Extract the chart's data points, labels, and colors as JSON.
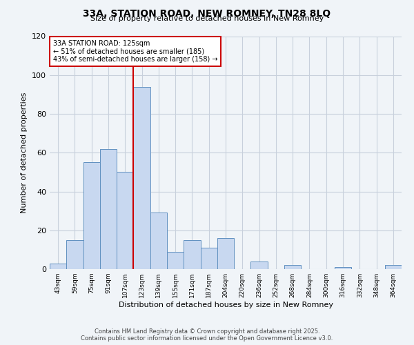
{
  "title": "33A, STATION ROAD, NEW ROMNEY, TN28 8LQ",
  "subtitle": "Size of property relative to detached houses in New Romney",
  "xlabel": "Distribution of detached houses by size in New Romney",
  "ylabel": "Number of detached properties",
  "categories": [
    "43sqm",
    "59sqm",
    "75sqm",
    "91sqm",
    "107sqm",
    "123sqm",
    "139sqm",
    "155sqm",
    "171sqm",
    "187sqm",
    "204sqm",
    "220sqm",
    "236sqm",
    "252sqm",
    "268sqm",
    "284sqm",
    "300sqm",
    "316sqm",
    "332sqm",
    "348sqm",
    "364sqm"
  ],
  "values": [
    3,
    15,
    55,
    62,
    50,
    94,
    29,
    9,
    15,
    11,
    16,
    0,
    4,
    0,
    2,
    0,
    0,
    1,
    0,
    0,
    2
  ],
  "bar_color": "#c8d8f0",
  "bar_edge_color": "#6090c0",
  "vline_x_index": 5,
  "vline_color": "#cc0000",
  "ylim": [
    0,
    120
  ],
  "yticks": [
    0,
    20,
    40,
    60,
    80,
    100,
    120
  ],
  "annotation_line1": "33A STATION ROAD: 125sqm",
  "annotation_line2": "← 51% of detached houses are smaller (185)",
  "annotation_line3": "43% of semi-detached houses are larger (158) →",
  "annotation_box_color": "#ffffff",
  "annotation_box_edge": "#cc0000",
  "grid_color": "#c8d0dc",
  "background_color": "#f0f4f8",
  "footer_line1": "Contains HM Land Registry data © Crown copyright and database right 2025.",
  "footer_line2": "Contains public sector information licensed under the Open Government Licence v3.0."
}
